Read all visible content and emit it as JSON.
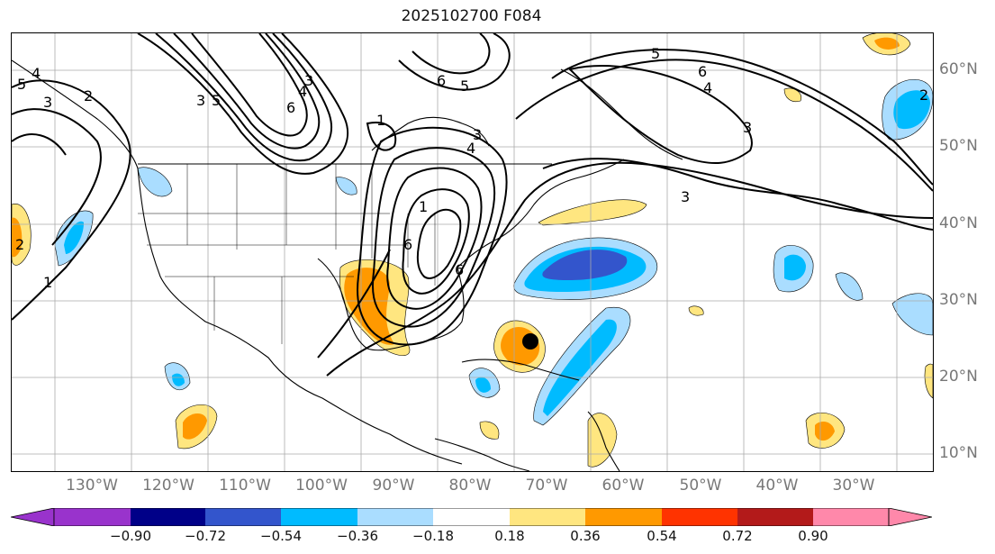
{
  "title": "2025102700 F084",
  "longitude_labels": [
    "130°W",
    "120°W",
    "110°W",
    "100°W",
    "90°W",
    "80°W",
    "70°W",
    "60°W",
    "50°W",
    "40°W",
    "30°W"
  ],
  "latitude_labels": [
    "60°N",
    "50°N",
    "40°N",
    "30°N",
    "20°N",
    "10°N"
  ],
  "colorbar": {
    "tick_labels": [
      "−0.90",
      "−0.72",
      "−0.54",
      "−0.36",
      "−0.18",
      "0.18",
      "0.36",
      "0.54",
      "0.72",
      "0.90"
    ],
    "colors": [
      "#9933cc",
      "#000088",
      "#3355cc",
      "#00bbff",
      "#aaddff",
      "#ffffff",
      "#ffe680",
      "#ff9900",
      "#ff3300",
      "#b31a1a",
      "#ff88aa"
    ]
  },
  "contour_labels": [
    "5",
    "4",
    "3",
    "3",
    "2",
    "6",
    "5",
    "3",
    "1",
    "5",
    "6",
    "4",
    "4",
    "3",
    "5",
    "6",
    "3",
    "2",
    "1",
    "2",
    "1",
    "6",
    "6",
    "4",
    "3"
  ],
  "storm_marker": "storm-center"
}
